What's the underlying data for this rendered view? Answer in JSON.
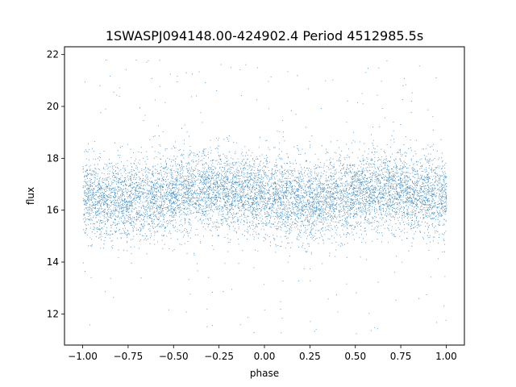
{
  "chart_data": {
    "type": "scatter",
    "title": "1SWASPJ094148.00-424902.4 Period 4512985.5s",
    "xlabel": "phase",
    "ylabel": "flux",
    "xlim": [
      -1.1,
      1.1
    ],
    "ylim": [
      10.8,
      22.3
    ],
    "xticks": [
      -1.0,
      -0.75,
      -0.5,
      -0.25,
      0.0,
      0.25,
      0.5,
      0.75,
      1.0
    ],
    "xtick_labels": [
      "−1.00",
      "−0.75",
      "−0.50",
      "−0.25",
      "0.00",
      "0.25",
      "0.50",
      "0.75",
      "1.00"
    ],
    "yticks": [
      12,
      14,
      16,
      18,
      20,
      22
    ],
    "ytick_labels": [
      "12",
      "14",
      "16",
      "18",
      "20",
      "22"
    ],
    "grid": false,
    "legend": "none",
    "marker_color": "#1f77b4",
    "series": [
      {
        "phase_range": [
          -1.0,
          1.0
        ],
        "flux_center": 16.6,
        "flux_typical_range": [
          15.2,
          18.3
        ],
        "flux_full_range": [
          11.2,
          22.0
        ],
        "approx_points": 40000
      }
    ]
  }
}
